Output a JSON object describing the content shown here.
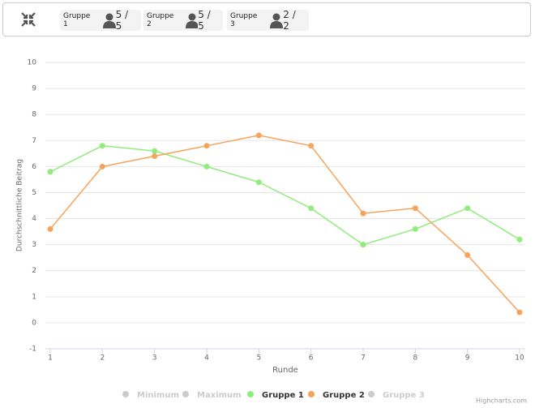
{
  "toolbar": {
    "groups": [
      {
        "name": "Gruppe 1",
        "count": "5 / 5"
      },
      {
        "name": "Gruppe 2",
        "count": "5 / 5"
      },
      {
        "name": "Gruppe 3",
        "count": "2 / 2"
      }
    ]
  },
  "chart_data": {
    "type": "line",
    "x_label": "Runde",
    "y_label": "Durchschnittliche Beitrag",
    "x": [
      1,
      2,
      3,
      4,
      5,
      6,
      7,
      8,
      9,
      10
    ],
    "xlim": [
      1,
      10
    ],
    "xticks": [
      1,
      2,
      3,
      4,
      5,
      6,
      7,
      8,
      9,
      10
    ],
    "ylim": [
      -1,
      10
    ],
    "yticks": [
      -1,
      0,
      1,
      2,
      3,
      4,
      5,
      6,
      7,
      8,
      9,
      10
    ],
    "grid": true,
    "series": [
      {
        "name": "Minimum",
        "color": "#cccccc",
        "visible": false
      },
      {
        "name": "Maximum",
        "color": "#cccccc",
        "visible": false
      },
      {
        "name": "Gruppe 1",
        "color": "#90ed7d",
        "values": [
          5.8,
          6.8,
          6.6,
          6.0,
          5.4,
          4.4,
          3.0,
          3.6,
          4.4,
          3.2
        ]
      },
      {
        "name": "Gruppe 2",
        "color": "#f7a35c",
        "values": [
          3.6,
          6.0,
          6.4,
          6.8,
          7.2,
          6.8,
          4.2,
          4.4,
          2.6,
          0.4
        ]
      },
      {
        "name": "Gruppe 3",
        "color": "#cccccc",
        "visible": false
      }
    ],
    "legend": "bottom",
    "credits": "Highcharts.com"
  }
}
